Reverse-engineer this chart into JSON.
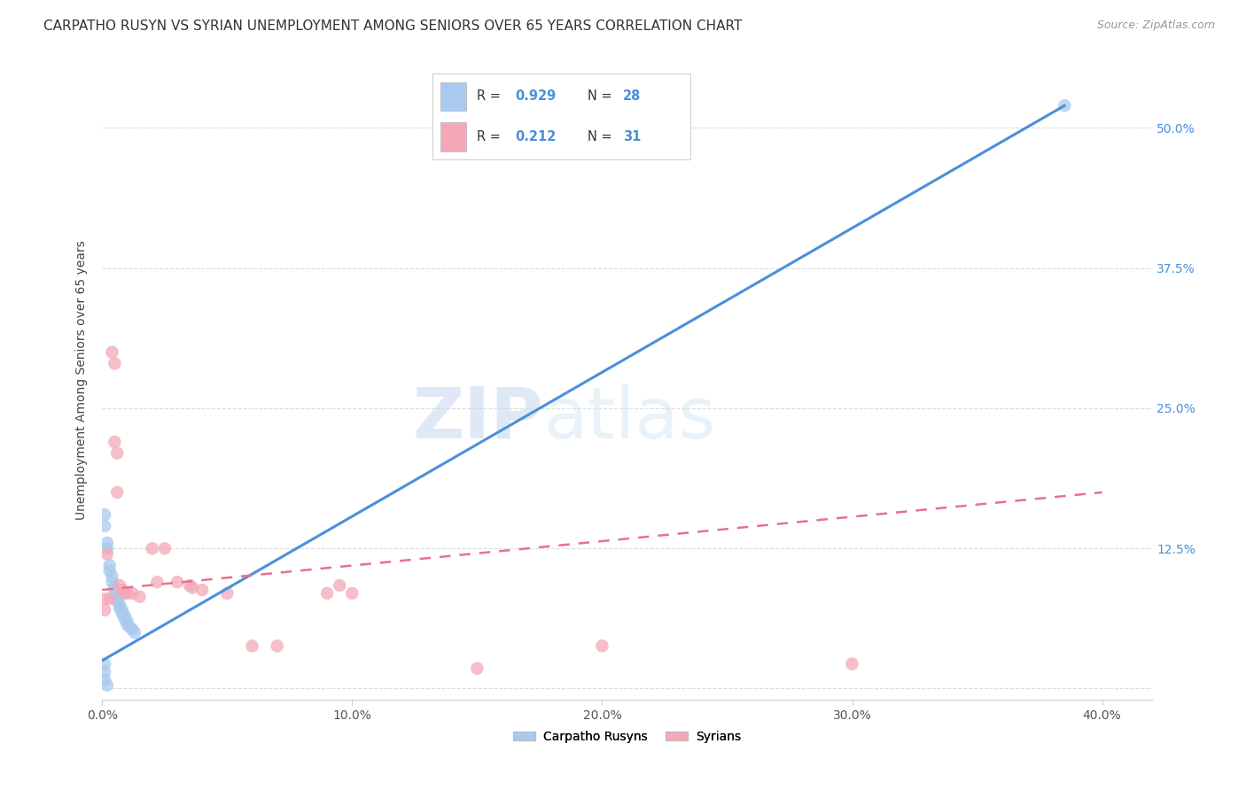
{
  "title": "CARPATHO RUSYN VS SYRIAN UNEMPLOYMENT AMONG SENIORS OVER 65 YEARS CORRELATION CHART",
  "source": "Source: ZipAtlas.com",
  "ylabel": "Unemployment Among Seniors over 65 years",
  "legend_labels": [
    "Carpatho Rusyns",
    "Syrians"
  ],
  "xlim": [
    0.0,
    0.42
  ],
  "ylim": [
    -0.01,
    0.56
  ],
  "xticks": [
    0.0,
    0.1,
    0.2,
    0.3,
    0.4
  ],
  "yticks_right": [
    0.0,
    0.125,
    0.25,
    0.375,
    0.5
  ],
  "ytick_labels_right": [
    "",
    "12.5%",
    "25.0%",
    "37.5%",
    "50.0%"
  ],
  "xtick_labels": [
    "0.0%",
    "10.0%",
    "20.0%",
    "30.0%",
    "40.0%"
  ],
  "blue_color": "#A8CAEE",
  "pink_color": "#F4A8B8",
  "blue_line_color": "#4A90D9",
  "pink_line_color": "#E87090",
  "watermark_zip": "ZIP",
  "watermark_atlas": "atlas",
  "background_color": "#FFFFFF",
  "grid_color": "#DDDDDD",
  "title_fontsize": 11,
  "axis_label_fontsize": 10,
  "tick_fontsize": 10,
  "right_tick_color": "#4A90D9",
  "legend_r_color": "#4A90D9",
  "blue_dots": [
    [
      0.001,
      0.155
    ],
    [
      0.001,
      0.145
    ],
    [
      0.002,
      0.13
    ],
    [
      0.002,
      0.125
    ],
    [
      0.003,
      0.11
    ],
    [
      0.003,
      0.105
    ],
    [
      0.004,
      0.1
    ],
    [
      0.004,
      0.095
    ],
    [
      0.005,
      0.09
    ],
    [
      0.005,
      0.085
    ],
    [
      0.006,
      0.082
    ],
    [
      0.006,
      0.078
    ],
    [
      0.007,
      0.075
    ],
    [
      0.007,
      0.072
    ],
    [
      0.008,
      0.07
    ],
    [
      0.008,
      0.067
    ],
    [
      0.009,
      0.065
    ],
    [
      0.009,
      0.062
    ],
    [
      0.01,
      0.06
    ],
    [
      0.01,
      0.057
    ],
    [
      0.011,
      0.055
    ],
    [
      0.012,
      0.053
    ],
    [
      0.013,
      0.05
    ],
    [
      0.001,
      0.022
    ],
    [
      0.001,
      0.015
    ],
    [
      0.001,
      0.008
    ],
    [
      0.002,
      0.003
    ],
    [
      0.385,
      0.52
    ]
  ],
  "pink_dots": [
    [
      0.001,
      0.08
    ],
    [
      0.001,
      0.07
    ],
    [
      0.002,
      0.12
    ],
    [
      0.003,
      0.08
    ],
    [
      0.004,
      0.3
    ],
    [
      0.005,
      0.29
    ],
    [
      0.005,
      0.22
    ],
    [
      0.006,
      0.21
    ],
    [
      0.006,
      0.175
    ],
    [
      0.007,
      0.092
    ],
    [
      0.008,
      0.088
    ],
    [
      0.009,
      0.085
    ],
    [
      0.01,
      0.085
    ],
    [
      0.012,
      0.085
    ],
    [
      0.015,
      0.082
    ],
    [
      0.02,
      0.125
    ],
    [
      0.022,
      0.095
    ],
    [
      0.025,
      0.125
    ],
    [
      0.03,
      0.095
    ],
    [
      0.035,
      0.092
    ],
    [
      0.036,
      0.09
    ],
    [
      0.04,
      0.088
    ],
    [
      0.05,
      0.085
    ],
    [
      0.06,
      0.038
    ],
    [
      0.07,
      0.038
    ],
    [
      0.09,
      0.085
    ],
    [
      0.095,
      0.092
    ],
    [
      0.1,
      0.085
    ],
    [
      0.15,
      0.018
    ],
    [
      0.2,
      0.038
    ],
    [
      0.3,
      0.022
    ]
  ],
  "blue_trend_x": [
    0.0,
    0.385
  ],
  "blue_trend_y": [
    0.025,
    0.52
  ],
  "pink_trend_x": [
    0.0,
    0.4
  ],
  "pink_trend_y": [
    0.088,
    0.175
  ]
}
